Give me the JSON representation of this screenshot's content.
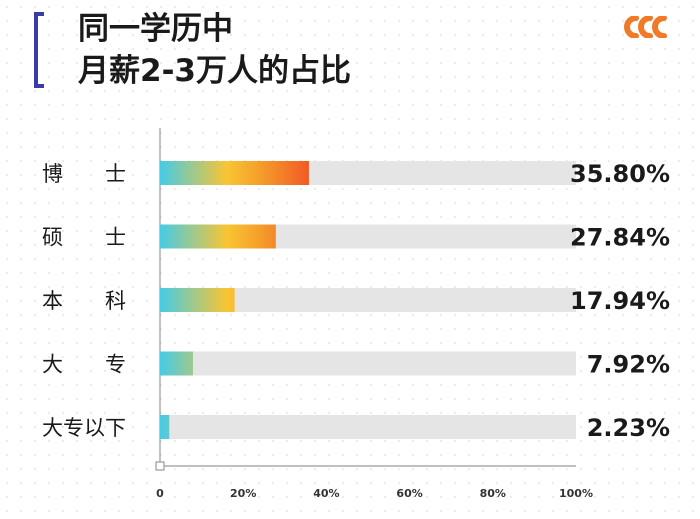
{
  "header": {
    "title_line1": "同一学历中",
    "title_line2": "月薪2-3万人的占比"
  },
  "colors": {
    "bracket": "#3a3aa8",
    "accent_dots": "#f07a28",
    "track": "#e5e5e5",
    "gradient": [
      "#46cbe6",
      "#f9c533",
      "#f5a22b",
      "#f25a25"
    ]
  },
  "chart_data": {
    "type": "bar",
    "orientation": "horizontal",
    "categories": [
      "博　　士",
      "硕　　士",
      "本　　科",
      "大　　专",
      "大专以下"
    ],
    "values": [
      35.8,
      27.84,
      17.94,
      7.92,
      2.23
    ],
    "value_labels": [
      "35.80%",
      "27.84%",
      "17.94%",
      "7.92%",
      "2.23%"
    ],
    "xlim": [
      0,
      100
    ],
    "xticks": [
      0,
      20,
      40,
      60,
      80,
      100
    ],
    "xtick_labels": [
      "0",
      "20%",
      "40%",
      "60%",
      "80%",
      "100%"
    ],
    "grid": false,
    "legend": "none"
  }
}
